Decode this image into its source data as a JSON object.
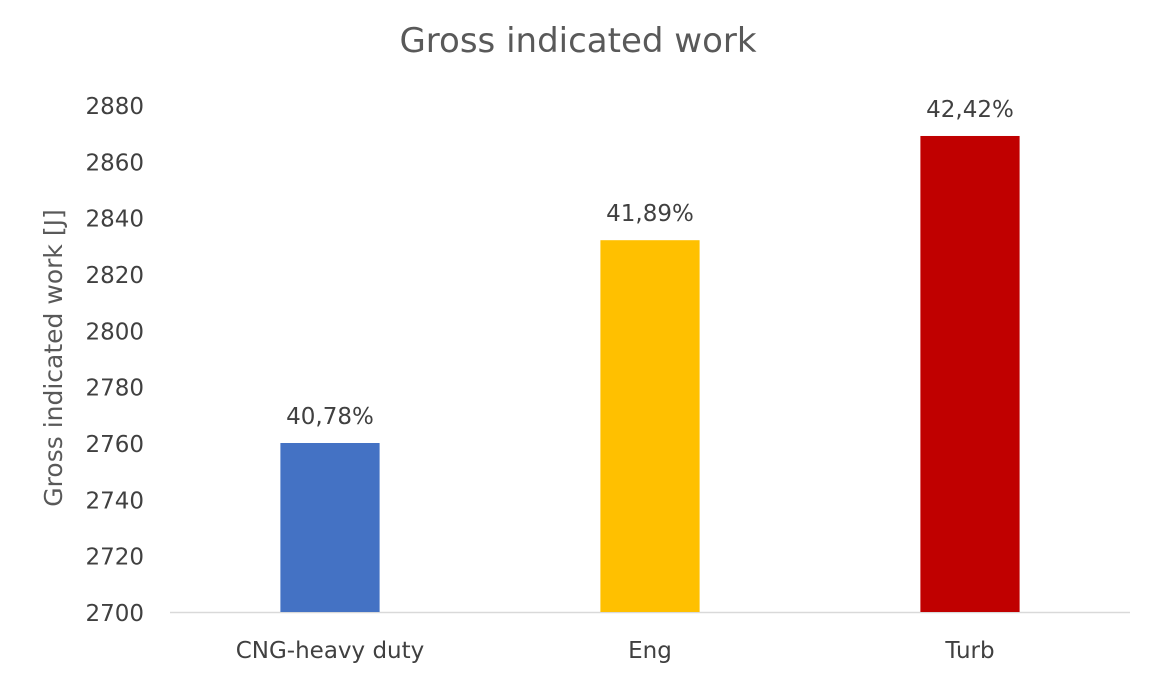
{
  "chart_data": {
    "type": "bar",
    "title": "Gross indicated work",
    "xlabel": "",
    "ylabel": "Gross indicated work [J]",
    "categories": [
      "CNG-heavy duty",
      "Eng",
      "Turb"
    ],
    "values": [
      2760,
      2832,
      2869
    ],
    "data_labels": [
      "40,78%",
      "41,89%",
      "42,42%"
    ],
    "bar_colors": [
      "#4472C4",
      "#FFC000",
      "#C00000"
    ],
    "ylim": [
      2700,
      2880
    ],
    "yticks": [
      "2700",
      "2720",
      "2740",
      "2760",
      "2780",
      "2800",
      "2820",
      "2840",
      "2860",
      "2880"
    ],
    "grid": false,
    "legend": false
  },
  "colors": {
    "title_text": "#595959",
    "tick_text": "#404040",
    "axis_line": "#d9d9d9"
  }
}
